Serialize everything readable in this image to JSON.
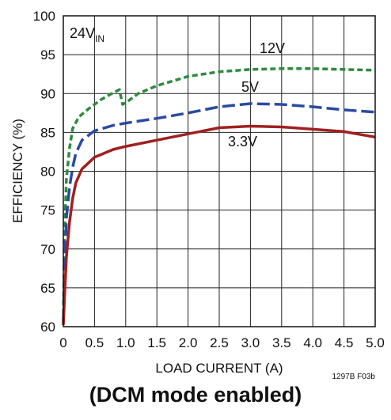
{
  "chart_data": {
    "type": "line",
    "xlabel": "LOAD CURRENT (A)",
    "ylabel": "EFFICIENCY (%)",
    "xlim": [
      0,
      5
    ],
    "ylim": [
      60,
      100
    ],
    "xticks": [
      "0",
      "0.5",
      "1.0",
      "1.5",
      "2.0",
      "2.5",
      "3.0",
      "3.5",
      "4.0",
      "4.5",
      "5.0"
    ],
    "yticks": [
      "60",
      "65",
      "70",
      "75",
      "80",
      "85",
      "90",
      "95",
      "100"
    ],
    "grid": true,
    "annotation": {
      "main": "24V",
      "sub": "IN"
    },
    "series": [
      {
        "name": "12V",
        "color": "#2e8b3e",
        "dash": "short",
        "points": [
          [
            0.0,
            60.5
          ],
          [
            0.02,
            72
          ],
          [
            0.05,
            79
          ],
          [
            0.1,
            83
          ],
          [
            0.15,
            85.5
          ],
          [
            0.25,
            87
          ],
          [
            0.4,
            88
          ],
          [
            0.6,
            89.2
          ],
          [
            0.8,
            90.1
          ],
          [
            0.9,
            90.5
          ],
          [
            0.95,
            88.6
          ],
          [
            1.0,
            88.8
          ],
          [
            1.2,
            90
          ],
          [
            1.5,
            91
          ],
          [
            2.0,
            92.2
          ],
          [
            2.5,
            92.8
          ],
          [
            3.0,
            93.1
          ],
          [
            3.5,
            93.2
          ],
          [
            4.0,
            93.2
          ],
          [
            4.5,
            93.1
          ],
          [
            5.0,
            93.0
          ]
        ]
      },
      {
        "name": "5V",
        "color": "#2b4aa3",
        "dash": "long",
        "points": [
          [
            0.0,
            60.5
          ],
          [
            0.02,
            68
          ],
          [
            0.05,
            74
          ],
          [
            0.1,
            78
          ],
          [
            0.15,
            80.5
          ],
          [
            0.2,
            82.3
          ],
          [
            0.3,
            84
          ],
          [
            0.5,
            85.2
          ],
          [
            0.8,
            85.9
          ],
          [
            1.0,
            86.2
          ],
          [
            1.5,
            86.8
          ],
          [
            2.0,
            87.5
          ],
          [
            2.5,
            88.3
          ],
          [
            3.0,
            88.7
          ],
          [
            3.5,
            88.6
          ],
          [
            4.0,
            88.3
          ],
          [
            4.5,
            87.9
          ],
          [
            5.0,
            87.6
          ]
        ]
      },
      {
        "name": "3.3V",
        "color": "#a02020",
        "dash": "solid",
        "points": [
          [
            0.0,
            60.2
          ],
          [
            0.02,
            64
          ],
          [
            0.05,
            69
          ],
          [
            0.1,
            73.5
          ],
          [
            0.15,
            76.5
          ],
          [
            0.2,
            78.5
          ],
          [
            0.3,
            80.3
          ],
          [
            0.5,
            81.8
          ],
          [
            0.8,
            82.8
          ],
          [
            1.0,
            83.2
          ],
          [
            1.5,
            84.0
          ],
          [
            2.0,
            84.8
          ],
          [
            2.5,
            85.6
          ],
          [
            3.0,
            85.8
          ],
          [
            3.5,
            85.7
          ],
          [
            4.0,
            85.4
          ],
          [
            4.5,
            85.1
          ],
          [
            5.0,
            84.4
          ]
        ]
      }
    ],
    "figure_code": "1297B F03b"
  },
  "caption": "(DCM mode enabled)"
}
